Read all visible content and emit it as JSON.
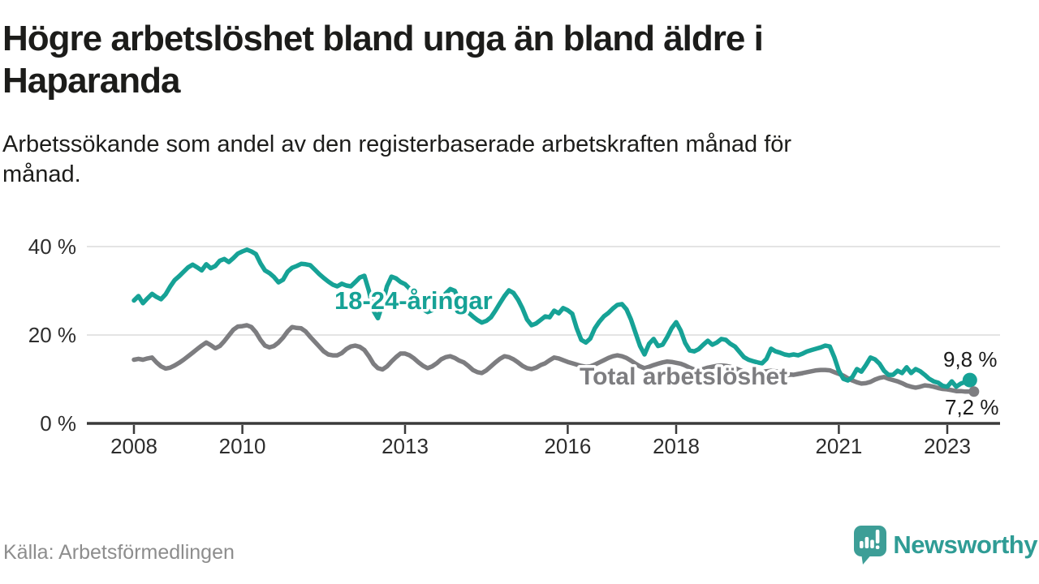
{
  "header": {
    "title": "Högre arbetslöshet bland unga än bland äldre i\nHaparanda",
    "subtitle": "Arbetssökande som andel av den registerbaserade arbetskraften månad för\nmånad."
  },
  "footer": {
    "source": "Källa: Arbetsförmedlingen",
    "brand": "Newsworthy",
    "brand_color": "#2f9c95",
    "logo_icon": "speech-bubble-bar-chart-icon",
    "logo_color": "#3d9e97"
  },
  "chart_data": {
    "type": "line",
    "x_unit": "month",
    "x_start": "2008-01",
    "x_end": "2023-06",
    "ylim": [
      0,
      45
    ],
    "grid": "horizontal",
    "legend_position": "inline-labels",
    "y_ticks": [
      {
        "value": 0,
        "label": "0 %"
      },
      {
        "value": 20,
        "label": "20 %"
      },
      {
        "value": 40,
        "label": "40 %"
      }
    ],
    "x_ticks": [
      {
        "year": 2008,
        "label": "2008"
      },
      {
        "year": 2010,
        "label": "2010"
      },
      {
        "year": 2013,
        "label": "2013"
      },
      {
        "year": 2016,
        "label": "2016"
      },
      {
        "year": 2018,
        "label": "2018"
      },
      {
        "year": 2021,
        "label": "2021"
      },
      {
        "year": 2023,
        "label": "2023"
      }
    ],
    "series": [
      {
        "name": "18-24-åringar",
        "color": "#16a296",
        "end_value": 9.8,
        "end_label": "9,8 %",
        "values": [
          27.8,
          28.8,
          27.2,
          28.3,
          29.3,
          28.6,
          28.1,
          29.2,
          30.9,
          32.4,
          33.3,
          34.3,
          35.3,
          35.9,
          35.3,
          34.6,
          36.0,
          35.1,
          35.6,
          36.8,
          37.2,
          36.5,
          37.4,
          38.4,
          38.9,
          39.3,
          38.9,
          38.3,
          36.2,
          34.6,
          34.0,
          33.1,
          31.9,
          32.5,
          34.3,
          35.2,
          35.6,
          36.1,
          36.0,
          35.8,
          34.8,
          33.8,
          32.9,
          32.1,
          31.4,
          31.0,
          31.6,
          31.2,
          31.0,
          32.0,
          33.0,
          33.4,
          30.0,
          25.5,
          23.8,
          27.0,
          31.0,
          33.2,
          32.8,
          32.0,
          31.5,
          30.5,
          28.8,
          27.0,
          25.8,
          25.2,
          25.6,
          26.6,
          28.0,
          29.4,
          30.4,
          30.0,
          27.8,
          26.2,
          25.1,
          24.2,
          23.4,
          22.8,
          23.2,
          24.0,
          25.5,
          27.2,
          28.8,
          30.1,
          29.5,
          28.0,
          26.0,
          23.5,
          22.2,
          22.6,
          23.4,
          24.2,
          24.0,
          25.5,
          24.9,
          26.1,
          25.6,
          24.8,
          21.5,
          18.9,
          18.3,
          19.2,
          21.5,
          23.0,
          24.2,
          25.0,
          26.0,
          26.8,
          27.0,
          25.8,
          23.5,
          20.5,
          17.5,
          15.6,
          18.0,
          19.1,
          17.5,
          17.8,
          19.5,
          21.5,
          22.9,
          21.0,
          18.2,
          16.5,
          16.3,
          16.8,
          17.8,
          18.7,
          17.8,
          18.3,
          19.1,
          18.9,
          18.0,
          17.4,
          16.2,
          15.0,
          14.4,
          14.1,
          13.8,
          13.6,
          14.6,
          16.9,
          16.3,
          16.0,
          15.6,
          15.4,
          15.6,
          15.4,
          15.8,
          16.3,
          16.6,
          16.9,
          17.2,
          17.6,
          17.4,
          15.0,
          11.9,
          10.1,
          9.7,
          10.5,
          12.3,
          11.7,
          13.2,
          14.9,
          14.5,
          13.5,
          11.9,
          11.0,
          11.0,
          11.9,
          11.4,
          12.7,
          11.4,
          12.3,
          11.8,
          11.0,
          10.1,
          9.5,
          9.2,
          8.5,
          8.3,
          9.5,
          8.3,
          9.0,
          9.4,
          9.8
        ]
      },
      {
        "name": "Total arbetslöshet",
        "color": "#7d7d80",
        "end_value": 7.2,
        "end_label": "7,2 %",
        "values": [
          14.4,
          14.6,
          14.4,
          14.7,
          14.9,
          13.8,
          12.9,
          12.4,
          12.6,
          13.1,
          13.7,
          14.4,
          15.2,
          16.0,
          16.8,
          17.6,
          18.3,
          17.7,
          17.0,
          17.5,
          18.6,
          19.9,
          21.2,
          21.9,
          22.0,
          22.2,
          21.8,
          20.6,
          18.9,
          17.6,
          17.2,
          17.5,
          18.3,
          19.4,
          20.8,
          21.8,
          21.6,
          21.5,
          20.8,
          19.6,
          18.5,
          17.4,
          16.3,
          15.6,
          15.4,
          15.4,
          15.9,
          16.8,
          17.4,
          17.6,
          17.3,
          16.6,
          15.2,
          13.5,
          12.5,
          12.2,
          12.9,
          14.0,
          15.0,
          15.8,
          15.8,
          15.4,
          14.7,
          13.8,
          13.0,
          12.5,
          12.9,
          13.6,
          14.5,
          15.0,
          15.2,
          14.8,
          14.2,
          13.8,
          13.0,
          12.1,
          11.6,
          11.4,
          12.0,
          12.9,
          13.8,
          14.6,
          15.2,
          15.0,
          14.5,
          13.8,
          13.0,
          12.5,
          12.3,
          12.6,
          13.2,
          13.6,
          14.3,
          14.9,
          14.7,
          14.3,
          13.9,
          13.6,
          13.3,
          13.0,
          12.8,
          12.9,
          13.3,
          13.8,
          14.3,
          14.8,
          15.2,
          15.4,
          15.2,
          14.8,
          14.2,
          13.5,
          12.9,
          12.5,
          12.8,
          13.2,
          13.5,
          13.8,
          14.0,
          13.9,
          13.7,
          13.5,
          13.1,
          12.6,
          12.2,
          12.0,
          12.3,
          12.6,
          12.8,
          13.0,
          13.1,
          13.0,
          12.8,
          12.5,
          12.1,
          11.7,
          11.4,
          11.2,
          11.4,
          11.6,
          11.8,
          11.9,
          11.8,
          11.6,
          11.3,
          11.1,
          11.0,
          11.2,
          11.4,
          11.6,
          11.8,
          12.0,
          12.1,
          12.1,
          12.0,
          11.6,
          11.2,
          10.8,
          10.2,
          9.7,
          9.3,
          9.0,
          9.1,
          9.4,
          9.9,
          10.3,
          10.5,
          10.1,
          9.8,
          9.5,
          9.1,
          8.6,
          8.3,
          8.1,
          8.3,
          8.6,
          8.5,
          8.3,
          8.0,
          7.8,
          7.7,
          7.5,
          7.3,
          7.3,
          7.2,
          7.2
        ]
      }
    ]
  }
}
